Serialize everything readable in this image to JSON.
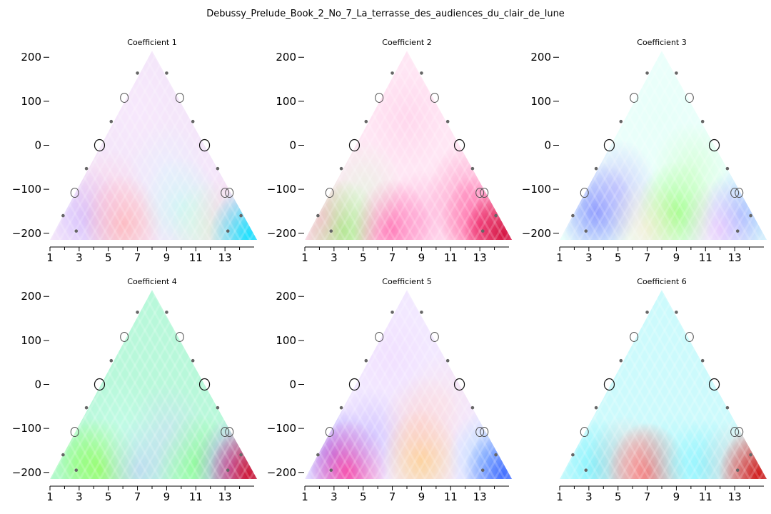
{
  "figure_title": "Debussy_Prelude_Book_2_No_7_La_terrasse_des_audiences_du_clair_de_lune",
  "chart_data": [
    {
      "type": "heatmap",
      "title": "Coefficient 1",
      "xticks": [
        "1",
        "3",
        "5",
        "7",
        "9",
        "11",
        "13"
      ],
      "xlim": [
        1,
        15
      ],
      "yticks": [
        "200",
        "100",
        "0",
        "−100",
        "−200"
      ],
      "yvalues": [
        200,
        100,
        0,
        -100,
        -200
      ],
      "ylim": [
        -215,
        215
      ],
      "base_color": "#f4e6fa",
      "blobs": [
        {
          "x": 3.5,
          "y": -160,
          "color": "#c8b0ff",
          "strength": 0.7
        },
        {
          "x": 6,
          "y": -180,
          "color": "#ffb0b0",
          "strength": 0.8
        },
        {
          "x": 5,
          "y": -120,
          "color": "#ffc4d8",
          "strength": 0.5
        },
        {
          "x": 10,
          "y": -140,
          "color": "#b8fff0",
          "strength": 0.6
        },
        {
          "x": 12,
          "y": -190,
          "color": "#d0ffd0",
          "strength": 0.6
        },
        {
          "x": 13.5,
          "y": -170,
          "color": "#ffc0e0",
          "strength": 0.5
        },
        {
          "x": 14.6,
          "y": -205,
          "color": "#00e0ff",
          "strength": 0.9
        },
        {
          "x": 9,
          "y": -60,
          "color": "#e0f4ff",
          "strength": 0.5
        },
        {
          "x": 7,
          "y": 80,
          "color": "#fbeaff",
          "strength": 0.4
        }
      ]
    },
    {
      "type": "heatmap",
      "title": "Coefficient 2",
      "xticks": [
        "1",
        "3",
        "5",
        "7",
        "9",
        "11",
        "13"
      ],
      "xlim": [
        1,
        15
      ],
      "yticks": [
        "200",
        "100",
        "0",
        "−100",
        "−200"
      ],
      "yvalues": [
        200,
        100,
        0,
        -100,
        -200
      ],
      "ylim": [
        -215,
        215
      ],
      "base_color": "#ffe6f4",
      "blobs": [
        {
          "x": 3.5,
          "y": -190,
          "color": "#80ff60",
          "strength": 0.8
        },
        {
          "x": 2.2,
          "y": -170,
          "color": "#ffb0d0",
          "strength": 0.6
        },
        {
          "x": 7,
          "y": -190,
          "color": "#ff60a8",
          "strength": 0.8
        },
        {
          "x": 9,
          "y": -170,
          "color": "#ff9ed0",
          "strength": 0.6
        },
        {
          "x": 13,
          "y": -180,
          "color": "#ff4088",
          "strength": 0.9
        },
        {
          "x": 12,
          "y": -110,
          "color": "#ff80b8",
          "strength": 0.6
        },
        {
          "x": 5,
          "y": -100,
          "color": "#d0ffd0",
          "strength": 0.4
        },
        {
          "x": 8,
          "y": 60,
          "color": "#ffc8e6",
          "strength": 0.5
        },
        {
          "x": 14.6,
          "y": -205,
          "color": "#d00030",
          "strength": 0.9
        }
      ]
    },
    {
      "type": "heatmap",
      "title": "Coefficient 3",
      "xticks": [
        "1",
        "3",
        "5",
        "7",
        "9",
        "11",
        "13"
      ],
      "xlim": [
        1,
        15
      ],
      "yticks": [
        "200",
        "100",
        "0",
        "−100",
        "−200"
      ],
      "yvalues": [
        200,
        100,
        0,
        -100,
        -200
      ],
      "ylim": [
        -215,
        215
      ],
      "base_color": "#eafffb",
      "blobs": [
        {
          "x": 3.5,
          "y": -150,
          "color": "#8090ff",
          "strength": 0.9
        },
        {
          "x": 5,
          "y": -100,
          "color": "#b8b0ff",
          "strength": 0.6
        },
        {
          "x": 9,
          "y": -150,
          "color": "#90ff70",
          "strength": 0.8
        },
        {
          "x": 10,
          "y": -60,
          "color": "#c8ffc0",
          "strength": 0.6
        },
        {
          "x": 7,
          "y": -190,
          "color": "#ffe0c0",
          "strength": 0.5
        },
        {
          "x": 13.5,
          "y": -160,
          "color": "#90b8ff",
          "strength": 0.8
        },
        {
          "x": 12,
          "y": -190,
          "color": "#ffb0ff",
          "strength": 0.5
        },
        {
          "x": 8,
          "y": 60,
          "color": "#e0fff4",
          "strength": 0.4
        }
      ]
    },
    {
      "type": "heatmap",
      "title": "Coefficient 4",
      "xticks": [
        "1",
        "3",
        "5",
        "7",
        "9",
        "11",
        "13"
      ],
      "xlim": [
        1,
        15
      ],
      "yticks": [
        "200",
        "100",
        "0",
        "−100",
        "−200"
      ],
      "yvalues": [
        200,
        100,
        0,
        -100,
        -200
      ],
      "ylim": [
        -215,
        215
      ],
      "base_color": "#b8f8da",
      "blobs": [
        {
          "x": 3,
          "y": -180,
          "color": "#90ff80",
          "strength": 0.6
        },
        {
          "x": 4.5,
          "y": -190,
          "color": "#90ff50",
          "strength": 0.7
        },
        {
          "x": 7,
          "y": -190,
          "color": "#c0c8ff",
          "strength": 0.6
        },
        {
          "x": 11,
          "y": -180,
          "color": "#80ff80",
          "strength": 0.7
        },
        {
          "x": 9,
          "y": -110,
          "color": "#d0d8ff",
          "strength": 0.5
        },
        {
          "x": 13.5,
          "y": -190,
          "color": "#c080ff",
          "strength": 0.8
        },
        {
          "x": 14.6,
          "y": -205,
          "color": "#d00020",
          "strength": 0.9
        },
        {
          "x": 6,
          "y": -100,
          "color": "#c8fff0",
          "strength": 0.5
        }
      ]
    },
    {
      "type": "heatmap",
      "title": "Coefficient 5",
      "xticks": [
        "1",
        "3",
        "5",
        "7",
        "9",
        "11",
        "13"
      ],
      "xlim": [
        1,
        15
      ],
      "yticks": [
        "200",
        "100",
        "0",
        "−100",
        "−200"
      ],
      "yvalues": [
        200,
        100,
        0,
        -100,
        -200
      ],
      "ylim": [
        -215,
        215
      ],
      "base_color": "#f2e8ff",
      "blobs": [
        {
          "x": 3,
          "y": -160,
          "color": "#a090ff",
          "strength": 0.9
        },
        {
          "x": 4,
          "y": -195,
          "color": "#ff40a0",
          "strength": 0.9
        },
        {
          "x": 5.5,
          "y": -120,
          "color": "#c0b0ff",
          "strength": 0.6
        },
        {
          "x": 9,
          "y": -170,
          "color": "#ffd080",
          "strength": 0.8
        },
        {
          "x": 9,
          "y": -90,
          "color": "#ffc8c0",
          "strength": 0.6
        },
        {
          "x": 10.5,
          "y": -40,
          "color": "#ffe0e0",
          "strength": 0.5
        },
        {
          "x": 13.5,
          "y": -170,
          "color": "#a0d8ff",
          "strength": 0.7
        },
        {
          "x": 14.6,
          "y": -205,
          "color": "#3060ff",
          "strength": 0.9
        },
        {
          "x": 7,
          "y": 60,
          "color": "#f0d8ff",
          "strength": 0.5
        }
      ]
    },
    {
      "type": "heatmap",
      "title": "Coefficient 6",
      "xticks": [
        "1",
        "3",
        "5",
        "7",
        "9",
        "11",
        "13"
      ],
      "xlim": [
        1,
        15
      ],
      "yticks": [],
      "yvalues": [],
      "ylim": [
        -215,
        215
      ],
      "base_color": "#ccfafc",
      "blobs": [
        {
          "x": 3.5,
          "y": -190,
          "color": "#60f0ff",
          "strength": 0.7
        },
        {
          "x": 7,
          "y": -200,
          "color": "#ff5050",
          "strength": 0.9
        },
        {
          "x": 5.5,
          "y": -185,
          "color": "#ffb0b0",
          "strength": 0.5
        },
        {
          "x": 9,
          "y": -180,
          "color": "#a0f8ff",
          "strength": 0.6
        },
        {
          "x": 11,
          "y": -190,
          "color": "#70f0ff",
          "strength": 0.6
        },
        {
          "x": 13,
          "y": -195,
          "color": "#ffc0c0",
          "strength": 0.5
        },
        {
          "x": 14.6,
          "y": -205,
          "color": "#d00000",
          "strength": 0.9
        }
      ]
    }
  ],
  "markers": {
    "dot_pairs": [
      [
        1.9,
        -160
      ],
      [
        2.8,
        -195
      ]
    ],
    "ring_small": [
      [
        2.7,
        -108
      ],
      [
        6.1,
        108
      ]
    ],
    "ring_major": [
      [
        4.4,
        0
      ]
    ],
    "dot_mid": [
      [
        3.5,
        -53
      ],
      [
        5.2,
        54
      ],
      [
        7,
        164
      ]
    ]
  }
}
